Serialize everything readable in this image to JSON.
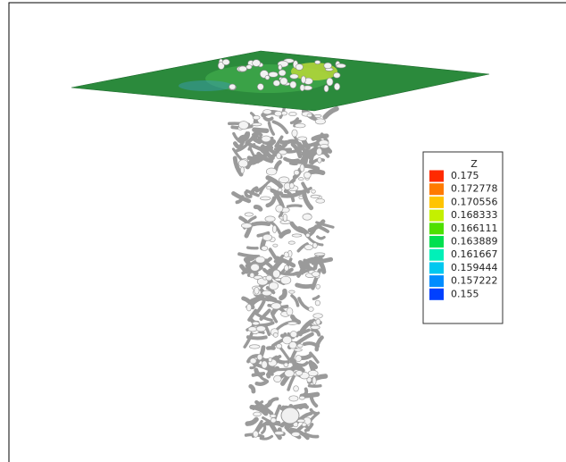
{
  "legend": {
    "title": "Z",
    "levels": [
      {
        "label": "0.175",
        "color": "#ff2a00"
      },
      {
        "label": "0.172778",
        "color": "#ff7a00"
      },
      {
        "label": "0.170556",
        "color": "#ffc400"
      },
      {
        "label": "0.168333",
        "color": "#c4f000"
      },
      {
        "label": "0.166111",
        "color": "#4ee000"
      },
      {
        "label": "0.163889",
        "color": "#00e050"
      },
      {
        "label": "0.161667",
        "color": "#00f0b8"
      },
      {
        "label": "0.159444",
        "color": "#00c8f0"
      },
      {
        "label": "0.157222",
        "color": "#008cff"
      },
      {
        "label": "0.155",
        "color": "#0040ff"
      }
    ]
  }
}
